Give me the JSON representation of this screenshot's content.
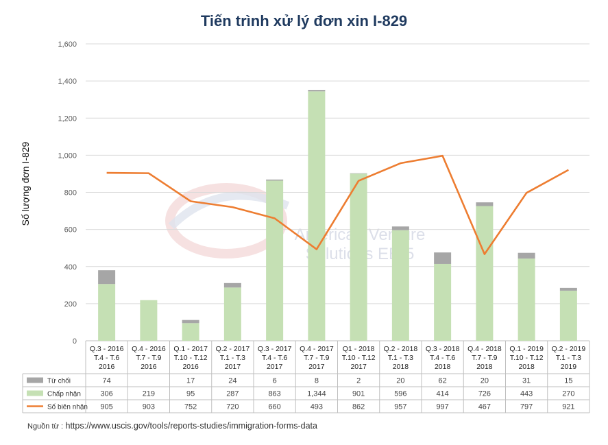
{
  "chart_data": {
    "type": "bar",
    "title": "Tiến trình xử lý đơn xin I-829",
    "ylabel": "Số lượng đơn I-829",
    "xlabel": "",
    "ylim": [
      0,
      1600
    ],
    "yticks": [
      "0",
      "200",
      "400",
      "600",
      "800",
      "1,000",
      "1,200",
      "1,400",
      "1,600"
    ],
    "ytick_values": [
      0,
      200,
      400,
      600,
      800,
      1000,
      1200,
      1400,
      1600
    ],
    "grid": true,
    "stacked": true,
    "categories": [
      [
        "Q.3 - 2016",
        "T.4 - T.6",
        "2016"
      ],
      [
        "Q.4 - 2016",
        "T.7 - T.9",
        "2016"
      ],
      [
        "Q.1 - 2017",
        "T.10 - T.12",
        "2016"
      ],
      [
        "Q.2 - 2017",
        "T.1 - T.3",
        "2017"
      ],
      [
        "Q.3 - 2017",
        "T.4 - T.6",
        "2017"
      ],
      [
        "Q.4 - 2017",
        "T.7 - T.9",
        "2017"
      ],
      [
        "Q1 - 2018",
        "T.10 - T.12",
        "2017"
      ],
      [
        "Q.2 - 2018",
        "T.1 - T.3",
        "2018"
      ],
      [
        "Q.3 - 2018",
        "T.4 - T.6",
        "2018"
      ],
      [
        "Q.4 - 2018",
        "T.7 - T.9",
        "2018"
      ],
      [
        "Q.1 - 2019",
        "T.10 - T.12",
        "2018"
      ],
      [
        "Q.2 - 2019",
        "T.1 - T.3",
        "2019"
      ]
    ],
    "series": [
      {
        "name": "Từ chối",
        "kind": "bar",
        "color": "#a6a6a6",
        "values": [
          74,
          null,
          17,
          24,
          6,
          8,
          2,
          20,
          62,
          20,
          31,
          15
        ],
        "labels": [
          "74",
          "",
          "17",
          "24",
          "6",
          "8",
          "2",
          "20",
          "62",
          "20",
          "31",
          "15"
        ]
      },
      {
        "name": "Chấp nhận",
        "kind": "bar",
        "color": "#c5e0b4",
        "values": [
          306,
          219,
          95,
          287,
          863,
          1344,
          901,
          596,
          414,
          726,
          443,
          270
        ],
        "labels": [
          "306",
          "219",
          "95",
          "287",
          "863",
          "1,344",
          "901",
          "596",
          "414",
          "726",
          "443",
          "270"
        ]
      },
      {
        "name": "Số biên nhận",
        "kind": "line",
        "color": "#ed7d31",
        "values": [
          905,
          903,
          752,
          720,
          660,
          493,
          862,
          957,
          997,
          467,
          797,
          921
        ],
        "labels": [
          "905",
          "903",
          "752",
          "720",
          "660",
          "493",
          "862",
          "957",
          "997",
          "467",
          "797",
          "921"
        ]
      }
    ],
    "watermark": [
      "American Venture",
      "Solutions EB-5"
    ]
  },
  "source": {
    "label": "Nguồn từ :",
    "url": "https://www.uscis.gov/tools/reports-studies/immigration-forms-data"
  }
}
